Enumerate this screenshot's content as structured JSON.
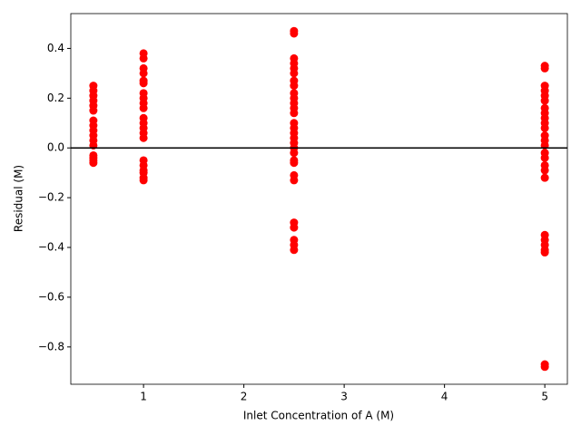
{
  "chart_data": {
    "type": "scatter",
    "x_label": "Inlet Concentration of A (M)",
    "y_label": "Residual (M)",
    "color": "#ff0000",
    "x": [
      0.5,
      0.5,
      0.5,
      0.5,
      0.5,
      0.5,
      0.5,
      0.5,
      0.5,
      0.5,
      0.5,
      0.5,
      0.5,
      0.5,
      0.5,
      0.5,
      1,
      1,
      1,
      1,
      1,
      1,
      1,
      1,
      1,
      1,
      1,
      1,
      1,
      1,
      1,
      1,
      1,
      1,
      1,
      1,
      1,
      2.5,
      2.5,
      2.5,
      2.5,
      2.5,
      2.5,
      2.5,
      2.5,
      2.5,
      2.5,
      2.5,
      2.5,
      2.5,
      2.5,
      2.5,
      2.5,
      2.5,
      2.5,
      2.5,
      2.5,
      2.5,
      2.5,
      2.5,
      2.5,
      2.5,
      2.5,
      2.5,
      2.5,
      2.5,
      5,
      5,
      5,
      5,
      5,
      5,
      5,
      5,
      5,
      5,
      5,
      5,
      5,
      5,
      5,
      5,
      5,
      5,
      5,
      5,
      5,
      5,
      5,
      5,
      5,
      5
    ],
    "values": [
      0.25,
      0.23,
      0.21,
      0.19,
      0.17,
      0.15,
      0.11,
      0.09,
      0.07,
      0.05,
      0.03,
      0.01,
      -0.03,
      -0.04,
      -0.05,
      -0.06,
      0.38,
      0.36,
      0.32,
      0.3,
      0.27,
      0.26,
      0.22,
      0.2,
      0.18,
      0.16,
      0.12,
      0.1,
      0.08,
      0.06,
      0.04,
      -0.05,
      -0.07,
      -0.09,
      -0.1,
      -0.12,
      -0.13,
      0.47,
      0.46,
      0.36,
      0.34,
      0.32,
      0.3,
      0.27,
      0.25,
      0.22,
      0.2,
      0.18,
      0.16,
      0.14,
      0.1,
      0.08,
      0.06,
      0.04,
      0.02,
      0.0,
      -0.02,
      -0.05,
      -0.06,
      -0.11,
      -0.13,
      -0.3,
      -0.32,
      -0.37,
      -0.39,
      -0.41,
      0.33,
      0.32,
      0.25,
      0.23,
      0.21,
      0.19,
      0.16,
      0.14,
      0.12,
      0.1,
      0.08,
      0.05,
      0.03,
      0.01,
      -0.02,
      -0.04,
      -0.07,
      -0.09,
      -0.12,
      -0.35,
      -0.37,
      -0.39,
      -0.41,
      -0.42,
      -0.87,
      -0.88
    ],
    "hline": {
      "value": 0,
      "color": "#000000"
    },
    "xlim": [
      0.275,
      5.225
    ],
    "xticks": [
      1,
      2,
      3,
      4,
      5
    ],
    "ylim": [
      -0.95,
      0.54
    ],
    "yticks": [
      {
        "value": -0.8,
        "label": "−0.8"
      },
      {
        "value": -0.6,
        "label": "−0.6"
      },
      {
        "value": -0.4,
        "label": "−0.4"
      },
      {
        "value": -0.2,
        "label": "−0.2"
      },
      {
        "value": 0,
        "label": "0.0"
      },
      0.2,
      0.4
    ]
  }
}
